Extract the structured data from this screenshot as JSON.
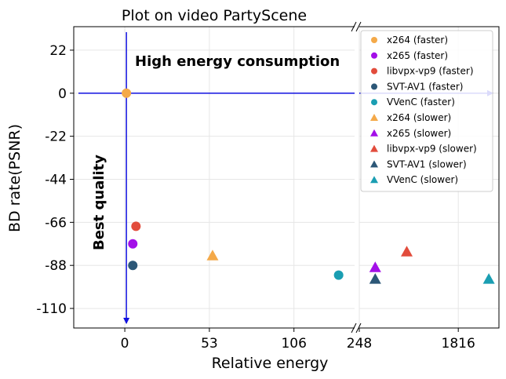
{
  "chart_data": {
    "type": "scatter",
    "title": "Plot on video PartyScene",
    "xlabel": "Relative energy",
    "ylabel": "BD rate(PSNR)",
    "x_axis_broken": true,
    "x_ticks_left": [
      0,
      53,
      106
    ],
    "x_ticks_right": [
      248,
      1816
    ],
    "xlim_left": [
      -32,
      144
    ],
    "xlim_right": [
      248,
      2460
    ],
    "y_ticks": [
      22,
      0,
      -22,
      -44,
      -66,
      -88,
      -110
    ],
    "ylim": [
      -120,
      34
    ],
    "grid": true,
    "legend_position": "top-right",
    "annotations": {
      "top": "High energy consumption",
      "left": "Best quality"
    },
    "reference_point": {
      "x": 1,
      "y": 0,
      "color": "#f4a949"
    },
    "series": [
      {
        "name": "x264 (faster)",
        "marker": "circle",
        "color": "#f4a949",
        "points": []
      },
      {
        "name": "x265 (faster)",
        "marker": "circle",
        "color": "#a30fe8",
        "points": [
          {
            "x": 5,
            "y": -77
          }
        ]
      },
      {
        "name": "libvpx-vp9 (faster)",
        "marker": "circle",
        "color": "#e24c3c",
        "points": [
          {
            "x": 7,
            "y": -68
          }
        ]
      },
      {
        "name": "SVT-AV1 (faster)",
        "marker": "circle",
        "color": "#2c5777",
        "points": [
          {
            "x": 5,
            "y": -88
          }
        ]
      },
      {
        "name": "VVenC (faster)",
        "marker": "circle",
        "color": "#1a9eb2",
        "points": [
          {
            "x": 134,
            "y": -93
          }
        ]
      },
      {
        "name": "x264 (slower)",
        "marker": "triangle",
        "color": "#f4a949",
        "points": [
          {
            "x": 55,
            "y": -83
          }
        ]
      },
      {
        "name": "x265 (slower)",
        "marker": "triangle",
        "color": "#a30fe8",
        "points": [
          {
            "x": 500,
            "y": -89
          }
        ]
      },
      {
        "name": "libvpx-vp9 (slower)",
        "marker": "triangle",
        "color": "#e24c3c",
        "points": [
          {
            "x": 1000,
            "y": -81
          }
        ]
      },
      {
        "name": "SVT-AV1 (slower)",
        "marker": "triangle",
        "color": "#2c5777",
        "points": [
          {
            "x": 500,
            "y": -95
          }
        ]
      },
      {
        "name": "VVenC (slower)",
        "marker": "triangle",
        "color": "#1a9eb2",
        "points": [
          {
            "x": 2300,
            "y": -95
          }
        ]
      }
    ]
  }
}
